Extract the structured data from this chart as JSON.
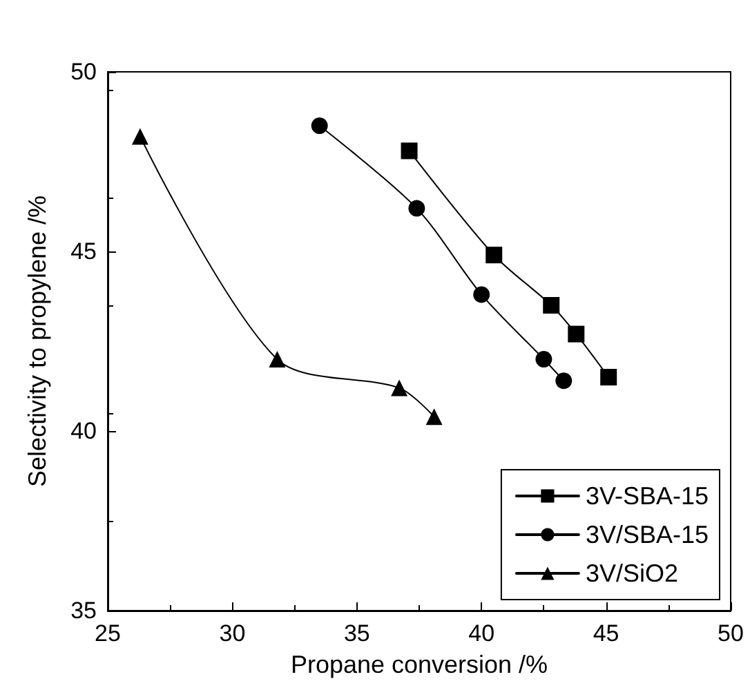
{
  "chart_data": {
    "type": "line",
    "xlabel": "Propane conversion /%",
    "ylabel": "Selectivity to propylene /%",
    "xlim": [
      25,
      50
    ],
    "xticks": [
      25,
      30,
      35,
      40,
      45,
      50
    ],
    "ylim": [
      35,
      50
    ],
    "yticks": [
      35,
      40,
      45,
      50
    ],
    "grid": false,
    "legend": "bottom right",
    "line_style": "solid",
    "series": [
      {
        "name": "3V-SBA-15",
        "color": "#000000",
        "marker": "square",
        "x": [
          37.1,
          40.5,
          42.8,
          43.8,
          45.1
        ],
        "values": [
          47.8,
          44.9,
          43.5,
          42.7,
          41.5
        ]
      },
      {
        "name": "3V/SBA-15",
        "color": "#000000",
        "marker": "circle",
        "x": [
          33.5,
          37.4,
          40.0,
          42.5,
          43.3
        ],
        "values": [
          48.5,
          46.2,
          43.8,
          42.0,
          41.4
        ]
      },
      {
        "name": "3V/SiO2",
        "color": "#000000",
        "marker": "triangle",
        "x": [
          26.3,
          31.8,
          36.7,
          38.1
        ],
        "values": [
          48.2,
          42.0,
          41.2,
          40.4
        ]
      }
    ]
  }
}
